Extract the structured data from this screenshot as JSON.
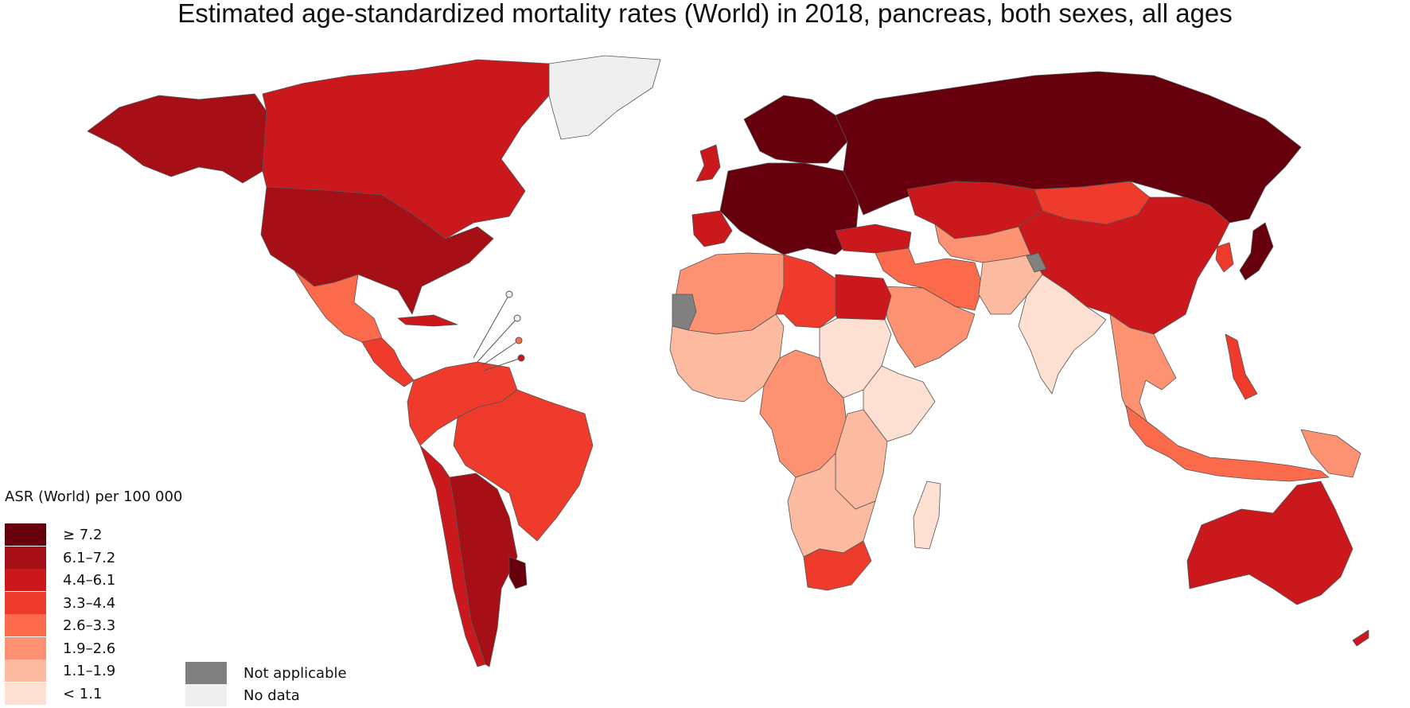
{
  "title": "Estimated age-standardized mortality rates (World) in 2018, pancreas, both sexes, all ages",
  "legend": {
    "title": "ASR (World) per 100 000",
    "classes": [
      {
        "label": "≥ 7.2",
        "color": "#67000d"
      },
      {
        "label": "6.1–7.2",
        "color": "#a50f15"
      },
      {
        "label": "4.4–6.1",
        "color": "#cb181d"
      },
      {
        "label": "3.3–4.4",
        "color": "#ef3b2c"
      },
      {
        "label": "2.6–3.3",
        "color": "#fb6a4a"
      },
      {
        "label": "1.9–2.6",
        "color": "#fc9272"
      },
      {
        "label": "1.1–1.9",
        "color": "#fcbba1"
      },
      {
        "label": "< 1.1",
        "color": "#fee0d2"
      }
    ],
    "special": [
      {
        "label": "Not applicable",
        "color": "#808080"
      },
      {
        "label": "No data",
        "color": "#efefef"
      }
    ]
  },
  "regions": [
    {
      "name": "Alaska",
      "class": "6.1–7.2"
    },
    {
      "name": "Canada",
      "class": "4.4–6.1"
    },
    {
      "name": "United States",
      "class": "6.1–7.2"
    },
    {
      "name": "Greenland",
      "class": "No data"
    },
    {
      "name": "Mexico",
      "class": "2.6–3.3"
    },
    {
      "name": "Central America",
      "class": "3.3–4.4"
    },
    {
      "name": "Cuba",
      "class": "4.4–6.1"
    },
    {
      "name": "Northern South America",
      "class": "3.3–4.4"
    },
    {
      "name": "Brazil",
      "class": "3.3–4.4"
    },
    {
      "name": "Chile",
      "class": "4.4–6.1"
    },
    {
      "name": "Argentina",
      "class": "6.1–7.2"
    },
    {
      "name": "Uruguay",
      "class": "≥ 7.2"
    },
    {
      "name": "Western Europe",
      "class": "≥ 7.2"
    },
    {
      "name": "United Kingdom",
      "class": "4.4–6.1"
    },
    {
      "name": "Iberia",
      "class": "4.4–6.1"
    },
    {
      "name": "Scandinavia",
      "class": "≥ 7.2"
    },
    {
      "name": "Russia",
      "class": "≥ 7.2"
    },
    {
      "name": "Turkey",
      "class": "4.4–6.1"
    },
    {
      "name": "Kazakhstan",
      "class": "4.4–6.1"
    },
    {
      "name": "Mongolia",
      "class": "3.3–4.4"
    },
    {
      "name": "China",
      "class": "4.4–6.1"
    },
    {
      "name": "Japan",
      "class": "≥ 7.2"
    },
    {
      "name": "Korea",
      "class": "3.3–4.4"
    },
    {
      "name": "Middle East",
      "class": "2.6–3.3"
    },
    {
      "name": "Arabian Peninsula",
      "class": "1.9–2.6"
    },
    {
      "name": "Central Asia",
      "class": "1.9–2.6"
    },
    {
      "name": "Afghanistan/Pakistan",
      "class": "1.1–1.9"
    },
    {
      "name": "India",
      "class": "< 1.1"
    },
    {
      "name": "Southeast Asia",
      "class": "1.9–2.6"
    },
    {
      "name": "Indonesia",
      "class": "2.6–3.3"
    },
    {
      "name": "Philippines",
      "class": "3.3–4.4"
    },
    {
      "name": "North-West Africa",
      "class": "1.9–2.6"
    },
    {
      "name": "Western Sahara",
      "class": "Not applicable"
    },
    {
      "name": "Libya",
      "class": "3.3–4.4"
    },
    {
      "name": "Egypt",
      "class": "4.4–6.1"
    },
    {
      "name": "West Africa",
      "class": "1.1–1.9"
    },
    {
      "name": "Sudan",
      "class": "< 1.1"
    },
    {
      "name": "Central Africa",
      "class": "1.9–2.6"
    },
    {
      "name": "East Africa",
      "class": "1.1–1.9"
    },
    {
      "name": "Horn of Africa",
      "class": "< 1.1"
    },
    {
      "name": "Southern Africa",
      "class": "1.1–1.9"
    },
    {
      "name": "South Africa",
      "class": "3.3–4.4"
    },
    {
      "name": "Madagascar",
      "class": "< 1.1"
    },
    {
      "name": "Australia",
      "class": "4.4–6.1"
    },
    {
      "name": "New Zealand",
      "class": "4.4–6.1"
    },
    {
      "name": "Papua New Guinea",
      "class": "1.9–2.6"
    },
    {
      "name": "Kashmir",
      "class": "Not applicable"
    }
  ]
}
